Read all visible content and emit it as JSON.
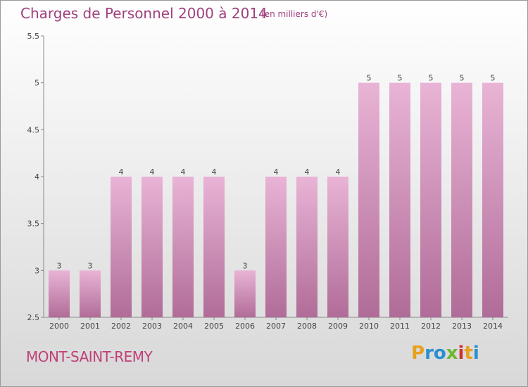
{
  "title": "Charges de Personnel 2000 à 2014",
  "subtitle": "(en milliers d'€)",
  "commune": "MONT-SAINT-REMY",
  "brand": {
    "parts": [
      "P",
      "r",
      "o",
      "x",
      "i",
      "t",
      "i"
    ],
    "colors": [
      "#e8a020",
      "#2a8fd0",
      "#2a8fd0",
      "#6cb830",
      "#d03030",
      "#e8a020",
      "#2a8fd0"
    ]
  },
  "colors": {
    "bar_light": "#e9b4d6",
    "bar_dark": "#b06c98",
    "accent": "#a0407e"
  },
  "chart_data": {
    "type": "bar",
    "categories": [
      "2000",
      "2001",
      "2002",
      "2003",
      "2004",
      "2005",
      "2006",
      "2007",
      "2008",
      "2009",
      "2010",
      "2011",
      "2012",
      "2013",
      "2014"
    ],
    "values": [
      3,
      3,
      4,
      4,
      4,
      4,
      3,
      4,
      4,
      4,
      5,
      5,
      5,
      5,
      5
    ],
    "data_labels": [
      "3",
      "3",
      "4",
      "4",
      "4",
      "4",
      "3",
      "4",
      "4",
      "4",
      "5",
      "5",
      "5",
      "5",
      "5"
    ],
    "title": "Charges de Personnel 2000 à 2014",
    "xlabel": "",
    "ylabel": "",
    "ylim": [
      2.5,
      5.5
    ],
    "yticks": [
      "2.5",
      "3",
      "3.5",
      "4",
      "4.5",
      "5",
      "5.5"
    ],
    "grid": false,
    "legend": "none"
  }
}
